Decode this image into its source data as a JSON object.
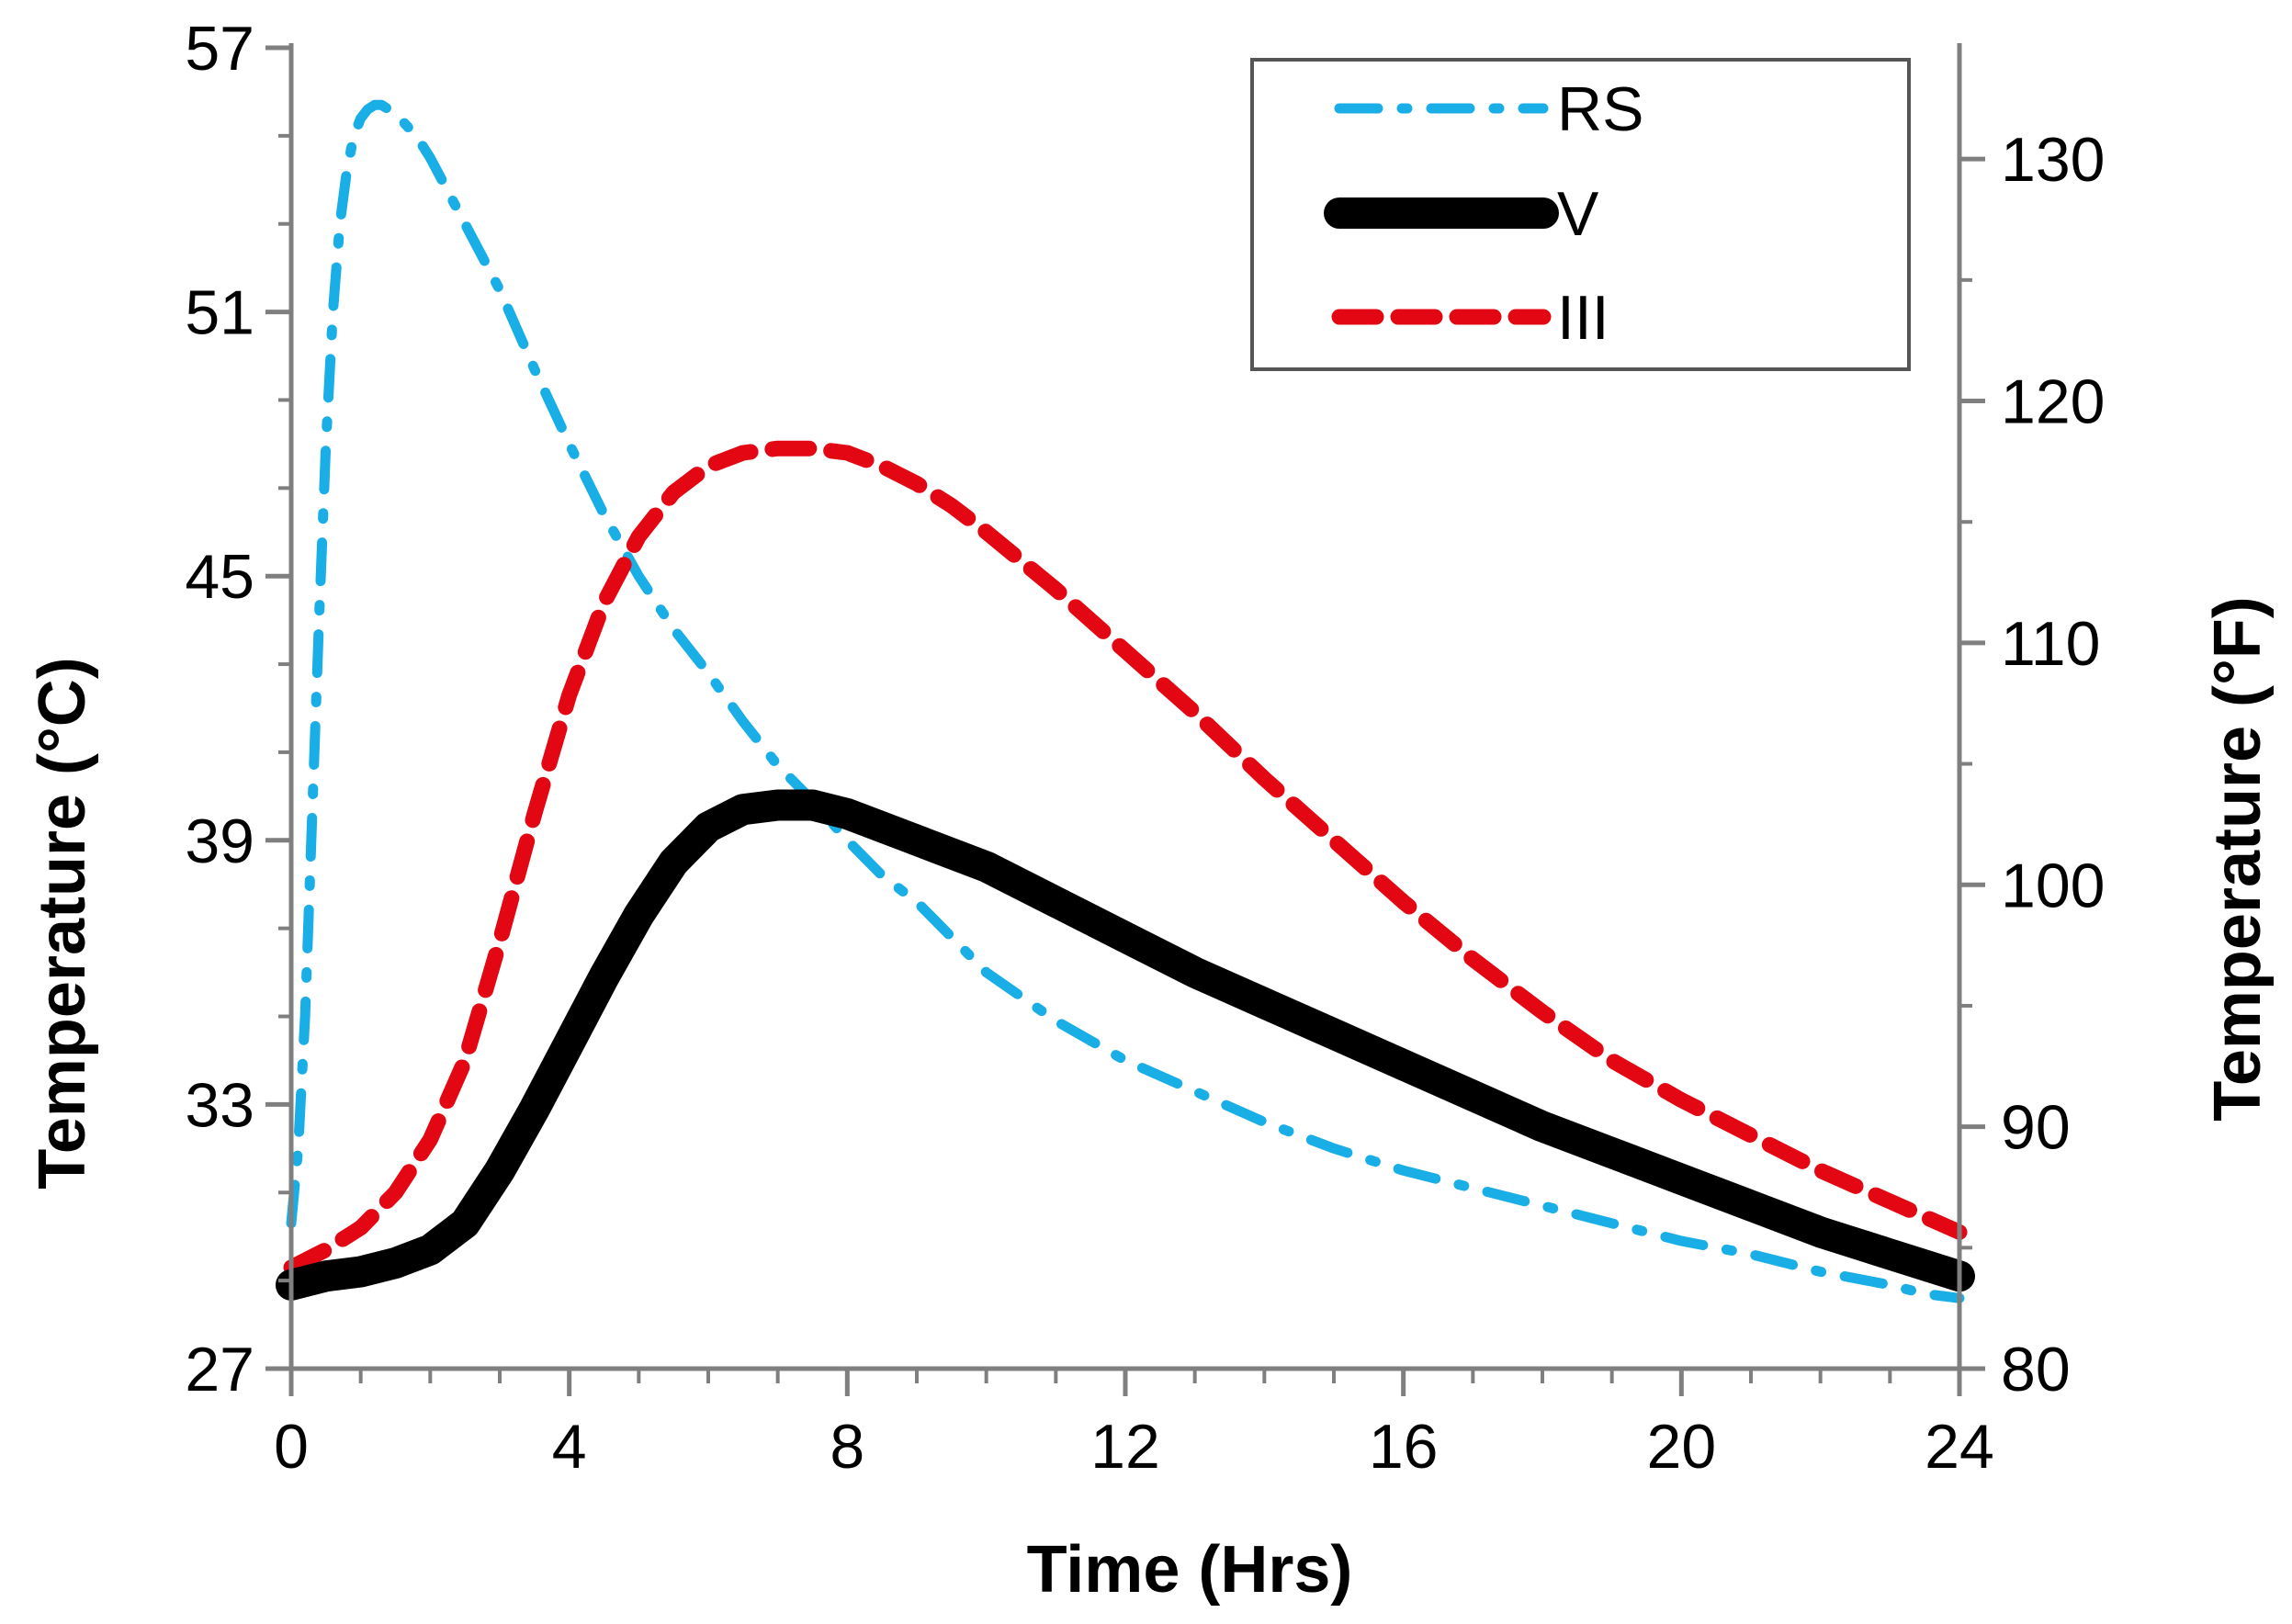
{
  "chart_data": {
    "type": "line",
    "title": "",
    "xlabel": "Time  (Hrs)",
    "ylabel": "Temperature  (°C)",
    "y2label": "Temperature  (°F)",
    "xlim": [
      0,
      24
    ],
    "ylim": [
      27,
      57
    ],
    "y2lim": [
      80,
      134.6
    ],
    "xticks": [
      0,
      4,
      8,
      12,
      16,
      20,
      24
    ],
    "yticks": [
      27,
      33,
      39,
      45,
      51,
      57
    ],
    "y2ticks": [
      80,
      90,
      100,
      110,
      120,
      130
    ],
    "grid": false,
    "legend_position": "top-right",
    "series": [
      {
        "name": "RS",
        "color": "#1aaee6",
        "style": "dash-dot",
        "x": [
          0,
          0.1,
          0.2,
          0.3,
          0.4,
          0.5,
          0.6,
          0.7,
          0.8,
          0.9,
          1.0,
          1.1,
          1.2,
          1.3,
          1.5,
          1.8,
          2.0,
          2.5,
          3.0,
          3.5,
          4.0,
          4.5,
          5.0,
          5.5,
          6.0,
          6.5,
          7.0,
          7.5,
          8.0,
          8.5,
          9.0,
          10.0,
          11.0,
          12.0,
          13.0,
          14.0,
          15.0,
          16.0,
          17.0,
          18.0,
          19.0,
          20.0,
          21.0,
          22.0,
          23.0,
          23.5,
          24.0
        ],
        "values": [
          30.3,
          32.0,
          35.0,
          39.5,
          44.0,
          48.0,
          51.0,
          53.0,
          54.2,
          55.0,
          55.4,
          55.6,
          55.7,
          55.7,
          55.5,
          55.0,
          54.5,
          53.0,
          51.5,
          49.7,
          48.0,
          46.4,
          45.0,
          43.8,
          42.8,
          41.7,
          40.7,
          39.9,
          39.0,
          38.2,
          37.6,
          36.0,
          34.9,
          34.0,
          33.3,
          32.6,
          32.0,
          31.5,
          31.1,
          30.7,
          30.3,
          29.9,
          29.6,
          29.2,
          28.9,
          28.7,
          28.6
        ]
      },
      {
        "name": "V",
        "color": "#000000",
        "style": "solid",
        "x": [
          0,
          0.5,
          1.0,
          1.5,
          2.0,
          2.5,
          3.0,
          3.5,
          4.0,
          4.5,
          5.0,
          5.5,
          6.0,
          6.5,
          7.0,
          7.5,
          8.0,
          8.5,
          9.0,
          10.0,
          11.0,
          12.0,
          13.0,
          14.0,
          15.0,
          16.0,
          17.0,
          18.0,
          19.0,
          20.0,
          21.0,
          22.0,
          23.0,
          24.0
        ],
        "values": [
          28.9,
          29.1,
          29.2,
          29.4,
          29.7,
          30.3,
          31.5,
          32.9,
          34.4,
          35.9,
          37.3,
          38.5,
          39.3,
          39.7,
          39.8,
          39.8,
          39.6,
          39.3,
          39.0,
          38.4,
          37.6,
          36.8,
          36.0,
          35.3,
          34.6,
          33.9,
          33.2,
          32.5,
          31.9,
          31.3,
          30.7,
          30.1,
          29.6,
          29.1
        ]
      },
      {
        "name": "III",
        "color": "#e30613",
        "style": "dashed",
        "x": [
          0,
          0.5,
          1.0,
          1.5,
          2.0,
          2.5,
          3.0,
          3.5,
          4.0,
          4.5,
          5.0,
          5.5,
          6.0,
          6.5,
          7.0,
          7.5,
          8.0,
          8.5,
          9.0,
          9.5,
          10.0,
          11.0,
          12.0,
          13.0,
          14.0,
          15.0,
          16.0,
          17.0,
          18.0,
          19.0,
          20.0,
          21.0,
          22.0,
          23.0,
          24.0
        ],
        "values": [
          29.3,
          29.7,
          30.2,
          31.0,
          32.2,
          34.0,
          36.7,
          39.6,
          42.3,
          44.4,
          45.9,
          46.9,
          47.5,
          47.8,
          47.9,
          47.9,
          47.8,
          47.5,
          47.1,
          46.6,
          46.0,
          44.7,
          43.3,
          41.9,
          40.4,
          39.0,
          37.6,
          36.3,
          35.1,
          34.0,
          33.1,
          32.3,
          31.5,
          30.8,
          30.1
        ]
      }
    ]
  }
}
